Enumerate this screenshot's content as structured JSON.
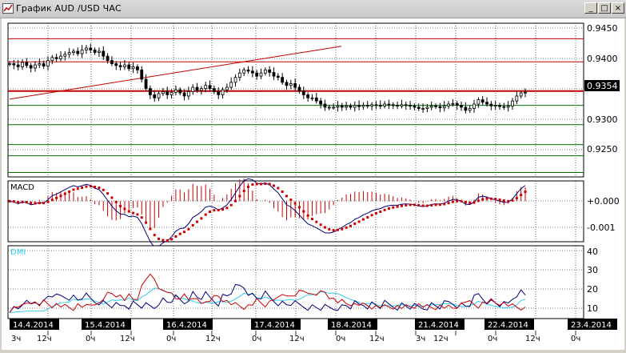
{
  "window": {
    "title": "График AUD /USD ЧАС",
    "minimize_glyph": "_",
    "maximize_glyph": "□",
    "close_glyph": "×"
  },
  "colors": {
    "candles": "#000000",
    "resistance": "#c00000",
    "support": "#007000",
    "macd_line": "#00007a",
    "macd_signal": "#cc0000",
    "dmi_adx": "#33ccee",
    "dmi_plus": "#00007a",
    "dmi_minus": "#cc0000",
    "grid": "#000000"
  },
  "price_panel": {
    "axis_labels": [
      "0.9450",
      "0.9400",
      "0.9354",
      "0.9300",
      "0.9250"
    ],
    "current_price": "0.9354"
  },
  "macd_panel": {
    "label": "MACD",
    "axis_labels": [
      "+0.000",
      "-0.001"
    ]
  },
  "dmi_panel": {
    "label": "DMI",
    "axis_labels": [
      "40",
      "30",
      "20",
      "10"
    ]
  },
  "date_axis": {
    "dates": [
      "14.4.2014",
      "15.4.2014",
      "16.4.2014",
      "17.4.2014",
      "18.4.2014",
      "21.4.2014",
      "22.4.2014",
      "23.4.2014"
    ],
    "hours": [
      "3ч",
      "12ч",
      "0ч",
      "12ч",
      "0ч",
      "12ч",
      "0ч",
      "12ч",
      "0ч",
      "12ч",
      "3ч",
      "12ч",
      "0ч",
      "12ч",
      "0ч"
    ]
  },
  "chart_data": {
    "type": "candlestick",
    "symbol": "AUD/USD",
    "ylim": [
      0.9218,
      0.9465
    ],
    "current_price": 0.9354,
    "closes": [
      0.94,
      0.9398,
      0.9395,
      0.9402,
      0.9397,
      0.9393,
      0.9398,
      0.94,
      0.9396,
      0.9405,
      0.941,
      0.9408,
      0.9412,
      0.9415,
      0.9418,
      0.942,
      0.9416,
      0.9422,
      0.9425,
      0.9422,
      0.9418,
      0.942,
      0.9412,
      0.9405,
      0.94,
      0.9397,
      0.9395,
      0.9398,
      0.9392,
      0.9395,
      0.939,
      0.9375,
      0.936,
      0.935,
      0.9345,
      0.9352,
      0.9355,
      0.935,
      0.9354,
      0.9358,
      0.9353,
      0.9348,
      0.9355,
      0.9362,
      0.9357,
      0.936,
      0.9365,
      0.936,
      0.9355,
      0.935,
      0.9358,
      0.9362,
      0.937,
      0.9378,
      0.9385,
      0.939,
      0.9388,
      0.9385,
      0.938,
      0.9385,
      0.939,
      0.9386,
      0.938,
      0.9378,
      0.937,
      0.9365,
      0.9368,
      0.9362,
      0.9356,
      0.935,
      0.9345,
      0.9345,
      0.934,
      0.9335,
      0.933,
      0.933,
      0.933,
      0.9332,
      0.933,
      0.9332,
      0.933,
      0.9333,
      0.9331,
      0.9333,
      0.9332,
      0.9334,
      0.9333,
      0.9332,
      0.9335,
      0.9334,
      0.9333,
      0.9332,
      0.9334,
      0.9333,
      0.9332,
      0.933,
      0.9328,
      0.9328,
      0.933,
      0.9332,
      0.9331,
      0.9329,
      0.9332,
      0.9335,
      0.9336,
      0.9333,
      0.933,
      0.9325,
      0.9328,
      0.9335,
      0.9342,
      0.9338,
      0.9335,
      0.9332,
      0.9333,
      0.9331,
      0.933,
      0.9332,
      0.934,
      0.9348,
      0.9353,
      0.9354
    ],
    "resistance_levels": [
      0.944,
      0.9403,
      0.9356
    ],
    "support_levels": [
      0.9333,
      0.9302,
      0.927,
      0.9252,
      0.9225
    ],
    "trendline": {
      "from": 0.9343,
      "to": 0.9428
    },
    "macd": {
      "ylim": [
        -0.0015,
        0.00075
      ],
      "zero": 0
    },
    "dmi": {
      "ylim": [
        5,
        41
      ]
    }
  }
}
